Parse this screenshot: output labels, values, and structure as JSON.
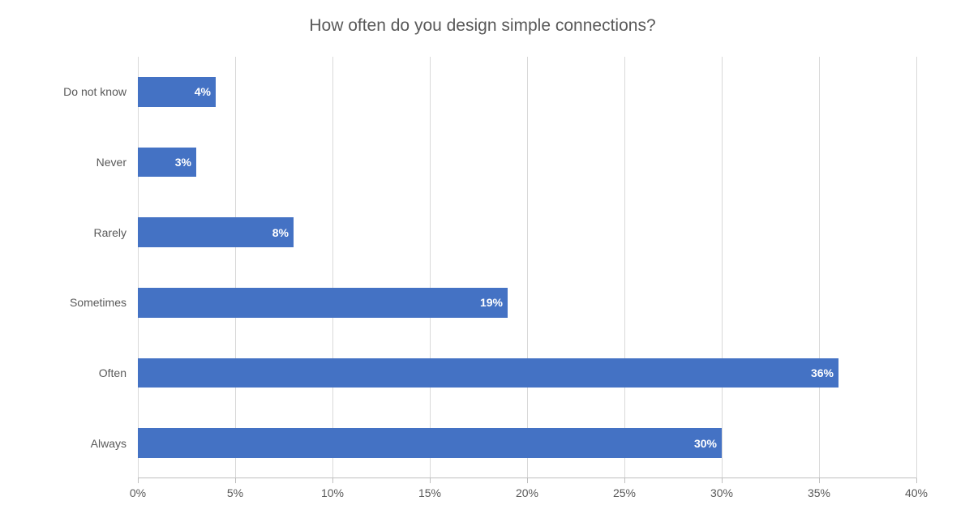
{
  "chart": {
    "type": "bar-horizontal",
    "title": "How often do you design simple connections?",
    "title_fontsize": 21,
    "title_color": "#595959",
    "background_color": "#ffffff",
    "bar_color": "#4472c4",
    "grid_color": "#d9d9d9",
    "axis_color": "#bfbfbf",
    "label_color": "#595959",
    "label_fontsize": 14,
    "data_label_color_inside": "#ffffff",
    "data_label_color_outside": "#595959",
    "data_label_fontweight": "700",
    "xlim": [
      0,
      40
    ],
    "xtick_step": 5,
    "xtick_suffix": "%",
    "bar_gap_ratio": 0.58,
    "categories": [
      "Do not know",
      "Never",
      "Rarely",
      "Sometimes",
      "Often",
      "Always"
    ],
    "values": [
      4,
      3,
      8,
      19,
      36,
      30
    ],
    "value_labels": [
      "4%",
      "3%",
      "8%",
      "19%",
      "36%",
      "30%"
    ]
  }
}
